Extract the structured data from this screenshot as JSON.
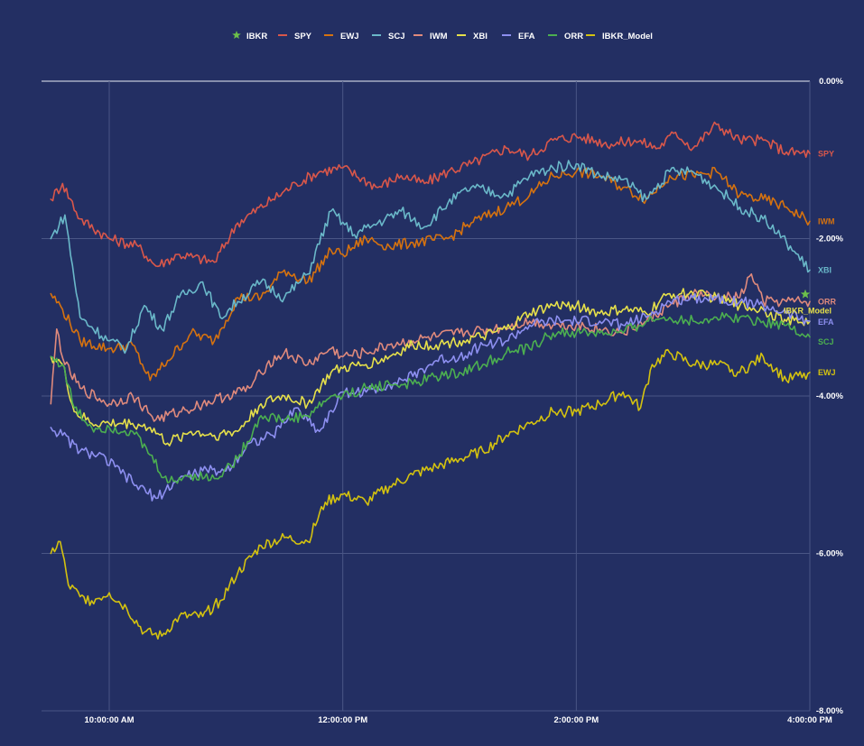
{
  "chart_data": {
    "type": "line",
    "title": "",
    "xlabel": "",
    "ylabel": "",
    "x_ticks": [
      "10:00:00 AM",
      "12:00:00 PM",
      "2:00:00 PM",
      "4:00:00 PM"
    ],
    "y_ticks": [
      "0.00%",
      "-2.00%",
      "-4.00%",
      "-6.00%",
      "-8.00%"
    ],
    "ylim": [
      -8,
      0
    ],
    "x_range_hours": [
      9.42,
      16.0
    ],
    "grid": true,
    "legend_position": "top",
    "legend": [
      "IBKR",
      "SPY",
      "EWJ",
      "SCJ",
      "IWM",
      "XBI",
      "EFA",
      "ORR",
      "IBKR_Model"
    ],
    "series": [
      {
        "name": "IBKR",
        "color": "#6cc04a",
        "marker": "star",
        "points": [
          [
            16.0,
            -2.65
          ]
        ]
      },
      {
        "name": "SPY",
        "color": "#d9574a",
        "label": "SPY",
        "points": [
          [
            9.5,
            -1.5
          ],
          [
            9.6,
            -1.3
          ],
          [
            9.75,
            -1.75
          ],
          [
            10.0,
            -2.0
          ],
          [
            10.25,
            -2.1
          ],
          [
            10.4,
            -2.35
          ],
          [
            10.6,
            -2.2
          ],
          [
            10.9,
            -2.3
          ],
          [
            11.1,
            -1.8
          ],
          [
            11.4,
            -1.5
          ],
          [
            11.6,
            -1.3
          ],
          [
            11.8,
            -1.15
          ],
          [
            12.0,
            -1.1
          ],
          [
            12.3,
            -1.35
          ],
          [
            12.5,
            -1.2
          ],
          [
            12.7,
            -1.3
          ],
          [
            12.9,
            -1.15
          ],
          [
            13.1,
            -1.05
          ],
          [
            13.4,
            -0.85
          ],
          [
            13.6,
            -0.95
          ],
          [
            13.8,
            -0.75
          ],
          [
            14.0,
            -0.7
          ],
          [
            14.3,
            -0.8
          ],
          [
            14.5,
            -0.75
          ],
          [
            14.7,
            -0.85
          ],
          [
            14.85,
            -0.65
          ],
          [
            15.0,
            -0.85
          ],
          [
            15.2,
            -0.55
          ],
          [
            15.4,
            -0.75
          ],
          [
            15.6,
            -0.75
          ],
          [
            15.8,
            -0.9
          ],
          [
            16.0,
            -0.92
          ]
        ]
      },
      {
        "name": "IWM",
        "color": "#d6720f",
        "label": "IWM",
        "points": [
          [
            9.5,
            -2.7
          ],
          [
            9.6,
            -2.9
          ],
          [
            9.75,
            -3.3
          ],
          [
            10.0,
            -3.4
          ],
          [
            10.2,
            -3.35
          ],
          [
            10.35,
            -3.8
          ],
          [
            10.5,
            -3.55
          ],
          [
            10.7,
            -3.2
          ],
          [
            10.9,
            -3.3
          ],
          [
            11.1,
            -2.75
          ],
          [
            11.3,
            -2.75
          ],
          [
            11.5,
            -2.4
          ],
          [
            11.7,
            -2.55
          ],
          [
            11.9,
            -2.15
          ],
          [
            12.0,
            -2.2
          ],
          [
            12.2,
            -2.0
          ],
          [
            12.4,
            -2.1
          ],
          [
            12.6,
            -2.05
          ],
          [
            12.9,
            -2.0
          ],
          [
            13.1,
            -1.8
          ],
          [
            13.4,
            -1.6
          ],
          [
            13.6,
            -1.45
          ],
          [
            13.8,
            -1.2
          ],
          [
            14.0,
            -1.15
          ],
          [
            14.2,
            -1.2
          ],
          [
            14.4,
            -1.35
          ],
          [
            14.6,
            -1.5
          ],
          [
            14.8,
            -1.2
          ],
          [
            15.0,
            -1.2
          ],
          [
            15.2,
            -1.15
          ],
          [
            15.4,
            -1.45
          ],
          [
            15.6,
            -1.5
          ],
          [
            15.8,
            -1.6
          ],
          [
            16.0,
            -1.78
          ]
        ]
      },
      {
        "name": "XBI",
        "color": "#6ab8c9",
        "label": "XBI",
        "points": [
          [
            9.5,
            -2.0
          ],
          [
            9.62,
            -1.7
          ],
          [
            9.75,
            -3.0
          ],
          [
            10.0,
            -3.3
          ],
          [
            10.15,
            -3.4
          ],
          [
            10.3,
            -2.85
          ],
          [
            10.45,
            -3.15
          ],
          [
            10.6,
            -2.75
          ],
          [
            10.8,
            -2.55
          ],
          [
            10.95,
            -3.0
          ],
          [
            11.1,
            -2.8
          ],
          [
            11.3,
            -2.55
          ],
          [
            11.5,
            -2.75
          ],
          [
            11.7,
            -2.45
          ],
          [
            11.9,
            -1.65
          ],
          [
            12.1,
            -1.95
          ],
          [
            12.3,
            -1.8
          ],
          [
            12.5,
            -1.65
          ],
          [
            12.7,
            -1.85
          ],
          [
            12.9,
            -1.55
          ],
          [
            13.1,
            -1.35
          ],
          [
            13.4,
            -1.45
          ],
          [
            13.6,
            -1.2
          ],
          [
            13.8,
            -1.1
          ],
          [
            14.0,
            -1.05
          ],
          [
            14.2,
            -1.2
          ],
          [
            14.4,
            -1.25
          ],
          [
            14.6,
            -1.5
          ],
          [
            14.8,
            -1.15
          ],
          [
            15.0,
            -1.15
          ],
          [
            15.2,
            -1.35
          ],
          [
            15.4,
            -1.6
          ],
          [
            15.6,
            -1.75
          ],
          [
            15.8,
            -2.05
          ],
          [
            16.0,
            -2.4
          ]
        ]
      },
      {
        "name": "ORR",
        "color": "#e08a7c",
        "label": "ORR",
        "points": [
          [
            9.5,
            -4.1
          ],
          [
            9.55,
            -3.15
          ],
          [
            9.62,
            -3.6
          ],
          [
            9.75,
            -3.9
          ],
          [
            10.0,
            -4.1
          ],
          [
            10.2,
            -4.0
          ],
          [
            10.4,
            -4.3
          ],
          [
            10.6,
            -4.2
          ],
          [
            10.8,
            -4.1
          ],
          [
            11.0,
            -4.0
          ],
          [
            11.2,
            -3.9
          ],
          [
            11.35,
            -3.6
          ],
          [
            11.5,
            -3.45
          ],
          [
            11.7,
            -3.6
          ],
          [
            11.9,
            -3.4
          ],
          [
            12.0,
            -3.5
          ],
          [
            12.2,
            -3.45
          ],
          [
            12.4,
            -3.35
          ],
          [
            12.6,
            -3.3
          ],
          [
            12.8,
            -3.25
          ],
          [
            13.0,
            -3.2
          ],
          [
            13.3,
            -3.15
          ],
          [
            13.6,
            -3.05
          ],
          [
            13.8,
            -3.1
          ],
          [
            14.0,
            -3.1
          ],
          [
            14.2,
            -3.15
          ],
          [
            14.4,
            -3.2
          ],
          [
            14.6,
            -3.05
          ],
          [
            14.8,
            -2.85
          ],
          [
            15.0,
            -2.7
          ],
          [
            15.2,
            -2.75
          ],
          [
            15.4,
            -2.75
          ],
          [
            15.5,
            -2.45
          ],
          [
            15.6,
            -2.8
          ],
          [
            15.8,
            -2.8
          ],
          [
            16.0,
            -2.8
          ]
        ]
      },
      {
        "name": "IBKR_Model",
        "color": "#e6e04a",
        "label": "IBKR_Model",
        "points": [
          [
            9.5,
            -3.5
          ],
          [
            9.6,
            -3.6
          ],
          [
            9.7,
            -4.2
          ],
          [
            9.85,
            -4.35
          ],
          [
            10.0,
            -4.35
          ],
          [
            10.2,
            -4.35
          ],
          [
            10.35,
            -4.4
          ],
          [
            10.5,
            -4.6
          ],
          [
            10.7,
            -4.45
          ],
          [
            10.9,
            -4.5
          ],
          [
            11.1,
            -4.45
          ],
          [
            11.3,
            -4.1
          ],
          [
            11.5,
            -4.0
          ],
          [
            11.7,
            -4.1
          ],
          [
            11.9,
            -3.7
          ],
          [
            12.0,
            -3.65
          ],
          [
            12.2,
            -3.6
          ],
          [
            12.4,
            -3.5
          ],
          [
            12.6,
            -3.35
          ],
          [
            12.8,
            -3.35
          ],
          [
            13.0,
            -3.3
          ],
          [
            13.2,
            -3.25
          ],
          [
            13.4,
            -3.15
          ],
          [
            13.6,
            -2.95
          ],
          [
            13.8,
            -2.85
          ],
          [
            14.0,
            -2.85
          ],
          [
            14.2,
            -2.95
          ],
          [
            14.4,
            -2.9
          ],
          [
            14.6,
            -2.95
          ],
          [
            14.8,
            -2.7
          ],
          [
            15.0,
            -2.7
          ],
          [
            15.2,
            -2.75
          ],
          [
            15.4,
            -2.85
          ],
          [
            15.6,
            -2.9
          ],
          [
            15.8,
            -3.05
          ],
          [
            16.0,
            -3.05
          ]
        ]
      },
      {
        "name": "EFA",
        "color": "#8d8ff0",
        "label": "EFA",
        "points": [
          [
            9.5,
            -4.4
          ],
          [
            9.6,
            -4.5
          ],
          [
            9.75,
            -4.7
          ],
          [
            9.9,
            -4.75
          ],
          [
            10.05,
            -4.9
          ],
          [
            10.2,
            -5.1
          ],
          [
            10.4,
            -5.3
          ],
          [
            10.6,
            -5.05
          ],
          [
            10.8,
            -4.95
          ],
          [
            11.0,
            -4.95
          ],
          [
            11.2,
            -4.6
          ],
          [
            11.4,
            -4.5
          ],
          [
            11.6,
            -4.15
          ],
          [
            11.8,
            -4.45
          ],
          [
            12.0,
            -3.95
          ],
          [
            12.2,
            -3.95
          ],
          [
            12.4,
            -3.85
          ],
          [
            12.6,
            -3.75
          ],
          [
            12.8,
            -3.55
          ],
          [
            13.0,
            -3.5
          ],
          [
            13.2,
            -3.35
          ],
          [
            13.4,
            -3.3
          ],
          [
            13.6,
            -3.1
          ],
          [
            13.8,
            -3.05
          ],
          [
            14.0,
            -3.05
          ],
          [
            14.2,
            -3.05
          ],
          [
            14.4,
            -3.1
          ],
          [
            14.6,
            -3.0
          ],
          [
            14.8,
            -2.8
          ],
          [
            15.0,
            -2.75
          ],
          [
            15.2,
            -2.75
          ],
          [
            15.4,
            -2.8
          ],
          [
            15.6,
            -2.85
          ],
          [
            15.8,
            -2.95
          ],
          [
            16.0,
            -3.05
          ]
        ]
      },
      {
        "name": "SCJ",
        "color": "#4caf50",
        "label": "SCJ",
        "points": [
          [
            9.5,
            -3.5
          ],
          [
            9.6,
            -3.6
          ],
          [
            9.7,
            -4.15
          ],
          [
            9.85,
            -4.4
          ],
          [
            10.0,
            -4.4
          ],
          [
            10.2,
            -4.45
          ],
          [
            10.35,
            -4.75
          ],
          [
            10.5,
            -5.1
          ],
          [
            10.7,
            -5.0
          ],
          [
            10.9,
            -5.05
          ],
          [
            11.1,
            -4.8
          ],
          [
            11.3,
            -4.25
          ],
          [
            11.5,
            -4.3
          ],
          [
            11.7,
            -4.25
          ],
          [
            11.9,
            -4.0
          ],
          [
            12.0,
            -4.0
          ],
          [
            12.2,
            -3.9
          ],
          [
            12.4,
            -3.85
          ],
          [
            12.6,
            -3.85
          ],
          [
            12.8,
            -3.75
          ],
          [
            13.0,
            -3.7
          ],
          [
            13.2,
            -3.6
          ],
          [
            13.4,
            -3.45
          ],
          [
            13.6,
            -3.4
          ],
          [
            13.8,
            -3.2
          ],
          [
            14.0,
            -3.2
          ],
          [
            14.2,
            -3.2
          ],
          [
            14.4,
            -3.2
          ],
          [
            14.6,
            -3.05
          ],
          [
            14.8,
            -3.0
          ],
          [
            15.0,
            -3.05
          ],
          [
            15.2,
            -3.0
          ],
          [
            15.4,
            -3.0
          ],
          [
            15.6,
            -3.05
          ],
          [
            15.8,
            -3.1
          ],
          [
            16.0,
            -3.25
          ]
        ]
      },
      {
        "name": "EWJ",
        "color": "#d4c20f",
        "label": "EWJ",
        "points": [
          [
            9.5,
            -6.0
          ],
          [
            9.58,
            -5.85
          ],
          [
            9.65,
            -6.4
          ],
          [
            9.75,
            -6.55
          ],
          [
            9.85,
            -6.6
          ],
          [
            10.0,
            -6.5
          ],
          [
            10.15,
            -6.7
          ],
          [
            10.3,
            -7.0
          ],
          [
            10.45,
            -7.05
          ],
          [
            10.6,
            -6.8
          ],
          [
            10.8,
            -6.8
          ],
          [
            10.95,
            -6.6
          ],
          [
            11.1,
            -6.25
          ],
          [
            11.3,
            -5.9
          ],
          [
            11.5,
            -5.8
          ],
          [
            11.7,
            -5.85
          ],
          [
            11.85,
            -5.35
          ],
          [
            12.0,
            -5.25
          ],
          [
            12.2,
            -5.35
          ],
          [
            12.4,
            -5.15
          ],
          [
            12.6,
            -5.0
          ],
          [
            12.8,
            -4.9
          ],
          [
            13.0,
            -4.8
          ],
          [
            13.2,
            -4.7
          ],
          [
            13.4,
            -4.5
          ],
          [
            13.6,
            -4.35
          ],
          [
            13.8,
            -4.2
          ],
          [
            14.0,
            -4.2
          ],
          [
            14.2,
            -4.1
          ],
          [
            14.4,
            -3.95
          ],
          [
            14.55,
            -4.15
          ],
          [
            14.65,
            -3.6
          ],
          [
            14.8,
            -3.45
          ],
          [
            15.0,
            -3.6
          ],
          [
            15.2,
            -3.6
          ],
          [
            15.4,
            -3.7
          ],
          [
            15.6,
            -3.5
          ],
          [
            15.8,
            -3.8
          ],
          [
            16.0,
            -3.7
          ]
        ]
      }
    ]
  }
}
